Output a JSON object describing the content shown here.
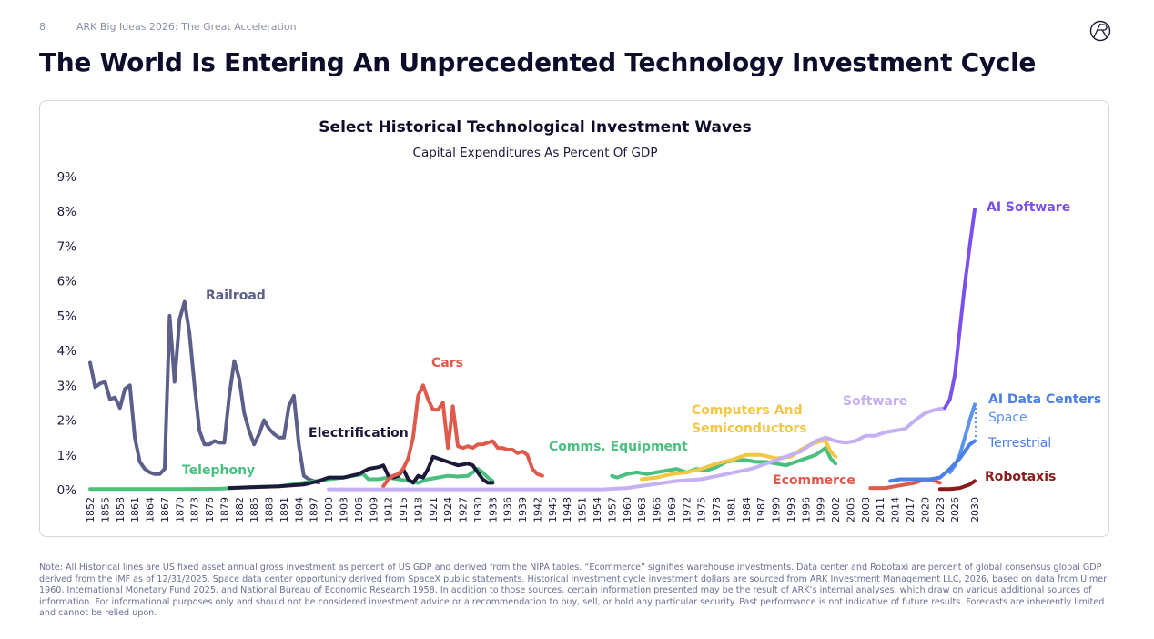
{
  "header": {
    "page": "8",
    "deck": "ARK Big Ideas 2026: The Great Acceleration",
    "title": "The World Is Entering An Unprecedented Technology Investment Cycle"
  },
  "chart_data": {
    "type": "line",
    "title": "Select Historical Technological Investment Waves",
    "subtitle": "Capital Expenditures As Percent Of GDP",
    "xlim": [
      1852,
      2030
    ],
    "ylim": [
      0,
      9
    ],
    "xticks": [
      1852,
      1855,
      1858,
      1861,
      1864,
      1867,
      1870,
      1873,
      1876,
      1879,
      1882,
      1885,
      1888,
      1891,
      1894,
      1897,
      1900,
      1903,
      1906,
      1909,
      1912,
      1915,
      1918,
      1921,
      1924,
      1927,
      1930,
      1933,
      1936,
      1939,
      1942,
      1945,
      1948,
      1951,
      1954,
      1957,
      1960,
      1963,
      1966,
      1969,
      1972,
      1975,
      1978,
      1981,
      1984,
      1987,
      1990,
      1993,
      1996,
      1999,
      2002,
      2005,
      2008,
      2011,
      2014,
      2017,
      2020,
      2023,
      2026,
      2030
    ],
    "yticks": [
      {
        "value": 0,
        "label": "0%"
      },
      {
        "value": 1,
        "label": "1%"
      },
      {
        "value": 2,
        "label": "2%"
      },
      {
        "value": 3,
        "label": "3%"
      },
      {
        "value": 4,
        "label": "4%"
      },
      {
        "value": 5,
        "label": "5%"
      },
      {
        "value": 6,
        "label": "6%"
      },
      {
        "value": 7,
        "label": "7%"
      },
      {
        "value": 8,
        "label": "8%"
      },
      {
        "value": 9,
        "label": "9%"
      }
    ],
    "grid": false,
    "annotations": [
      "AI Data Centers"
    ],
    "series": [
      {
        "name": "Railroad",
        "color": "#5b5f8a",
        "x": [
          1852,
          1853,
          1854,
          1855,
          1856,
          1857,
          1858,
          1859,
          1860,
          1861,
          1862,
          1863,
          1864,
          1865,
          1866,
          1867,
          1868,
          1869,
          1870,
          1871,
          1872,
          1873,
          1874,
          1875,
          1876,
          1877,
          1878,
          1879,
          1880,
          1881,
          1882,
          1883,
          1884,
          1885,
          1886,
          1887,
          1888,
          1889,
          1890,
          1891,
          1892,
          1893,
          1894,
          1895,
          1896,
          1897,
          1898
        ],
        "values": [
          3.65,
          2.95,
          3.05,
          3.1,
          2.6,
          2.65,
          2.35,
          2.9,
          3.0,
          1.5,
          0.8,
          0.6,
          0.5,
          0.45,
          0.45,
          0.6,
          5.0,
          3.1,
          4.9,
          5.4,
          4.5,
          3.0,
          1.7,
          1.3,
          1.3,
          1.4,
          1.35,
          1.35,
          2.7,
          3.7,
          3.2,
          2.2,
          1.7,
          1.3,
          1.6,
          2.0,
          1.75,
          1.6,
          1.5,
          1.5,
          2.4,
          2.7,
          1.3,
          0.4,
          0.3,
          0.25,
          0.2
        ]
      },
      {
        "name": "Telephony",
        "color": "#4bbf7e",
        "x": [
          1852,
          1860,
          1870,
          1878,
          1881,
          1885,
          1890,
          1895,
          1900,
          1903,
          1905,
          1907,
          1908,
          1910,
          1912,
          1914,
          1916,
          1918,
          1920,
          1922,
          1924,
          1926,
          1928,
          1929,
          1930,
          1931,
          1932,
          1933
        ],
        "values": [
          0.02,
          0.02,
          0.02,
          0.03,
          0.05,
          0.08,
          0.1,
          0.2,
          0.3,
          0.35,
          0.4,
          0.45,
          0.3,
          0.3,
          0.35,
          0.3,
          0.25,
          0.2,
          0.3,
          0.35,
          0.4,
          0.38,
          0.4,
          0.5,
          0.6,
          0.5,
          0.35,
          0.25
        ]
      },
      {
        "name": "Electrification",
        "color": "#1c1a3a",
        "x": [
          1880,
          1890,
          1895,
          1898,
          1900,
          1903,
          1906,
          1908,
          1910,
          1911,
          1912,
          1913,
          1914,
          1915,
          1916,
          1917,
          1918,
          1919,
          1920,
          1921,
          1922,
          1923,
          1924,
          1925,
          1926,
          1928,
          1929,
          1930,
          1931,
          1932,
          1933
        ],
        "values": [
          0.05,
          0.1,
          0.15,
          0.25,
          0.35,
          0.35,
          0.45,
          0.6,
          0.65,
          0.7,
          0.4,
          0.35,
          0.4,
          0.6,
          0.3,
          0.2,
          0.4,
          0.35,
          0.6,
          0.95,
          0.9,
          0.85,
          0.8,
          0.75,
          0.7,
          0.75,
          0.7,
          0.5,
          0.3,
          0.2,
          0.2
        ]
      },
      {
        "name": "Cars",
        "color": "#e05a4b",
        "x": [
          1911,
          1912,
          1913,
          1914,
          1915,
          1916,
          1917,
          1918,
          1919,
          1920,
          1921,
          1922,
          1923,
          1924,
          1925,
          1926,
          1927,
          1928,
          1929,
          1930,
          1931,
          1932,
          1933,
          1934,
          1935,
          1936,
          1937,
          1938,
          1939,
          1940,
          1941,
          1942,
          1943
        ],
        "values": [
          0.1,
          0.3,
          0.4,
          0.45,
          0.6,
          0.9,
          1.5,
          2.7,
          3.0,
          2.6,
          2.3,
          2.3,
          2.5,
          1.2,
          2.4,
          1.25,
          1.2,
          1.25,
          1.2,
          1.3,
          1.3,
          1.35,
          1.4,
          1.2,
          1.2,
          1.15,
          1.15,
          1.05,
          1.1,
          1.0,
          0.6,
          0.45,
          0.4
        ]
      },
      {
        "name": "Comms. Equipment",
        "color": "#4bbf7e",
        "x": [
          1957,
          1958,
          1960,
          1962,
          1964,
          1966,
          1968,
          1970,
          1972,
          1974,
          1976,
          1978,
          1980,
          1982,
          1984,
          1986,
          1988,
          1990,
          1992,
          1994,
          1996,
          1998,
          1999,
          2000,
          2001,
          2002
        ],
        "values": [
          0.4,
          0.35,
          0.45,
          0.5,
          0.45,
          0.5,
          0.55,
          0.6,
          0.5,
          0.6,
          0.55,
          0.65,
          0.8,
          0.85,
          0.85,
          0.8,
          0.8,
          0.75,
          0.7,
          0.8,
          0.9,
          1.0,
          1.1,
          1.2,
          0.9,
          0.75
        ]
      },
      {
        "name": "Computers And Semiconductors",
        "color": "#f2c744",
        "x": [
          1963,
          1966,
          1969,
          1972,
          1975,
          1978,
          1981,
          1984,
          1987,
          1990,
          1993,
          1995,
          1997,
          1999,
          2000,
          2001,
          2002
        ],
        "values": [
          0.3,
          0.35,
          0.45,
          0.5,
          0.6,
          0.75,
          0.85,
          1.0,
          1.0,
          0.9,
          0.95,
          1.15,
          1.3,
          1.4,
          1.4,
          1.1,
          0.95
        ]
      },
      {
        "name": "Software",
        "color": "#c4b0f2",
        "x": [
          1900,
          1930,
          1955,
          1960,
          1965,
          1970,
          1975,
          1980,
          1985,
          1990,
          1995,
          1998,
          2000,
          2002,
          2004,
          2006,
          2008,
          2010,
          2012,
          2014,
          2016,
          2018,
          2020,
          2022,
          2024
        ],
        "values": [
          0.01,
          0.01,
          0.01,
          0.05,
          0.15,
          0.25,
          0.3,
          0.45,
          0.6,
          0.85,
          1.1,
          1.4,
          1.5,
          1.4,
          1.35,
          1.4,
          1.55,
          1.55,
          1.65,
          1.7,
          1.75,
          2.0,
          2.2,
          2.3,
          2.35
        ]
      },
      {
        "name": "Ecommerce",
        "color": "#e05a4b",
        "x": [
          2009,
          2012,
          2014,
          2016,
          2018,
          2020,
          2022,
          2023
        ],
        "values": [
          0.05,
          0.05,
          0.1,
          0.15,
          0.2,
          0.3,
          0.25,
          0.2
        ]
      },
      {
        "name": "AI Software",
        "color": "#7b4ff0",
        "x": [
          2024,
          2025,
          2026,
          2027,
          2028,
          2029,
          2030
        ],
        "values": [
          2.35,
          2.6,
          3.3,
          4.6,
          5.9,
          7.0,
          8.05
        ]
      },
      {
        "name": "Space",
        "color": "#5b93f0",
        "x": [
          2025,
          2026,
          2027,
          2028,
          2029,
          2030
        ],
        "values": [
          0.5,
          0.7,
          1.0,
          1.5,
          2.0,
          2.45
        ]
      },
      {
        "name": "Terrestrial",
        "color": "#4a7fe8",
        "x": [
          2013,
          2015,
          2017,
          2019,
          2021,
          2023,
          2025,
          2027,
          2029,
          2030
        ],
        "values": [
          0.25,
          0.3,
          0.3,
          0.3,
          0.3,
          0.35,
          0.6,
          0.9,
          1.3,
          1.4
        ]
      },
      {
        "name": "Robotaxis",
        "color": "#8b1a1a",
        "x": [
          2023,
          2025,
          2027,
          2029,
          2030
        ],
        "values": [
          0.02,
          0.02,
          0.05,
          0.15,
          0.25
        ]
      }
    ]
  },
  "note": "Note: All Historical lines are US fixed asset annual gross investment as percent of US GDP and derived from the NIPA tables. “Ecommerce” signifies warehouse investments. Data center and Robotaxi are percent of global consensus global GDP derived from the IMF as of 12/31/2025. Space data center opportunity derived from SpaceX public statements. Historical investment cycle investment dollars are sourced from ARK Investment Management LLC, 2026, based on data from Ulmer 1960, International Monetary Fund 2025, and National Bureau of Economic Research 1958. In addition to those sources, certain information presented may be the result of ARK’s internal analyses, which draw on various additional sources of information. For informational purposes only and should not be considered investment advice or a recommendation to buy, sell, or hold any particular security. Past performance is not indicative of future results. Forecasts are inherently limited and cannot be relied upon."
}
